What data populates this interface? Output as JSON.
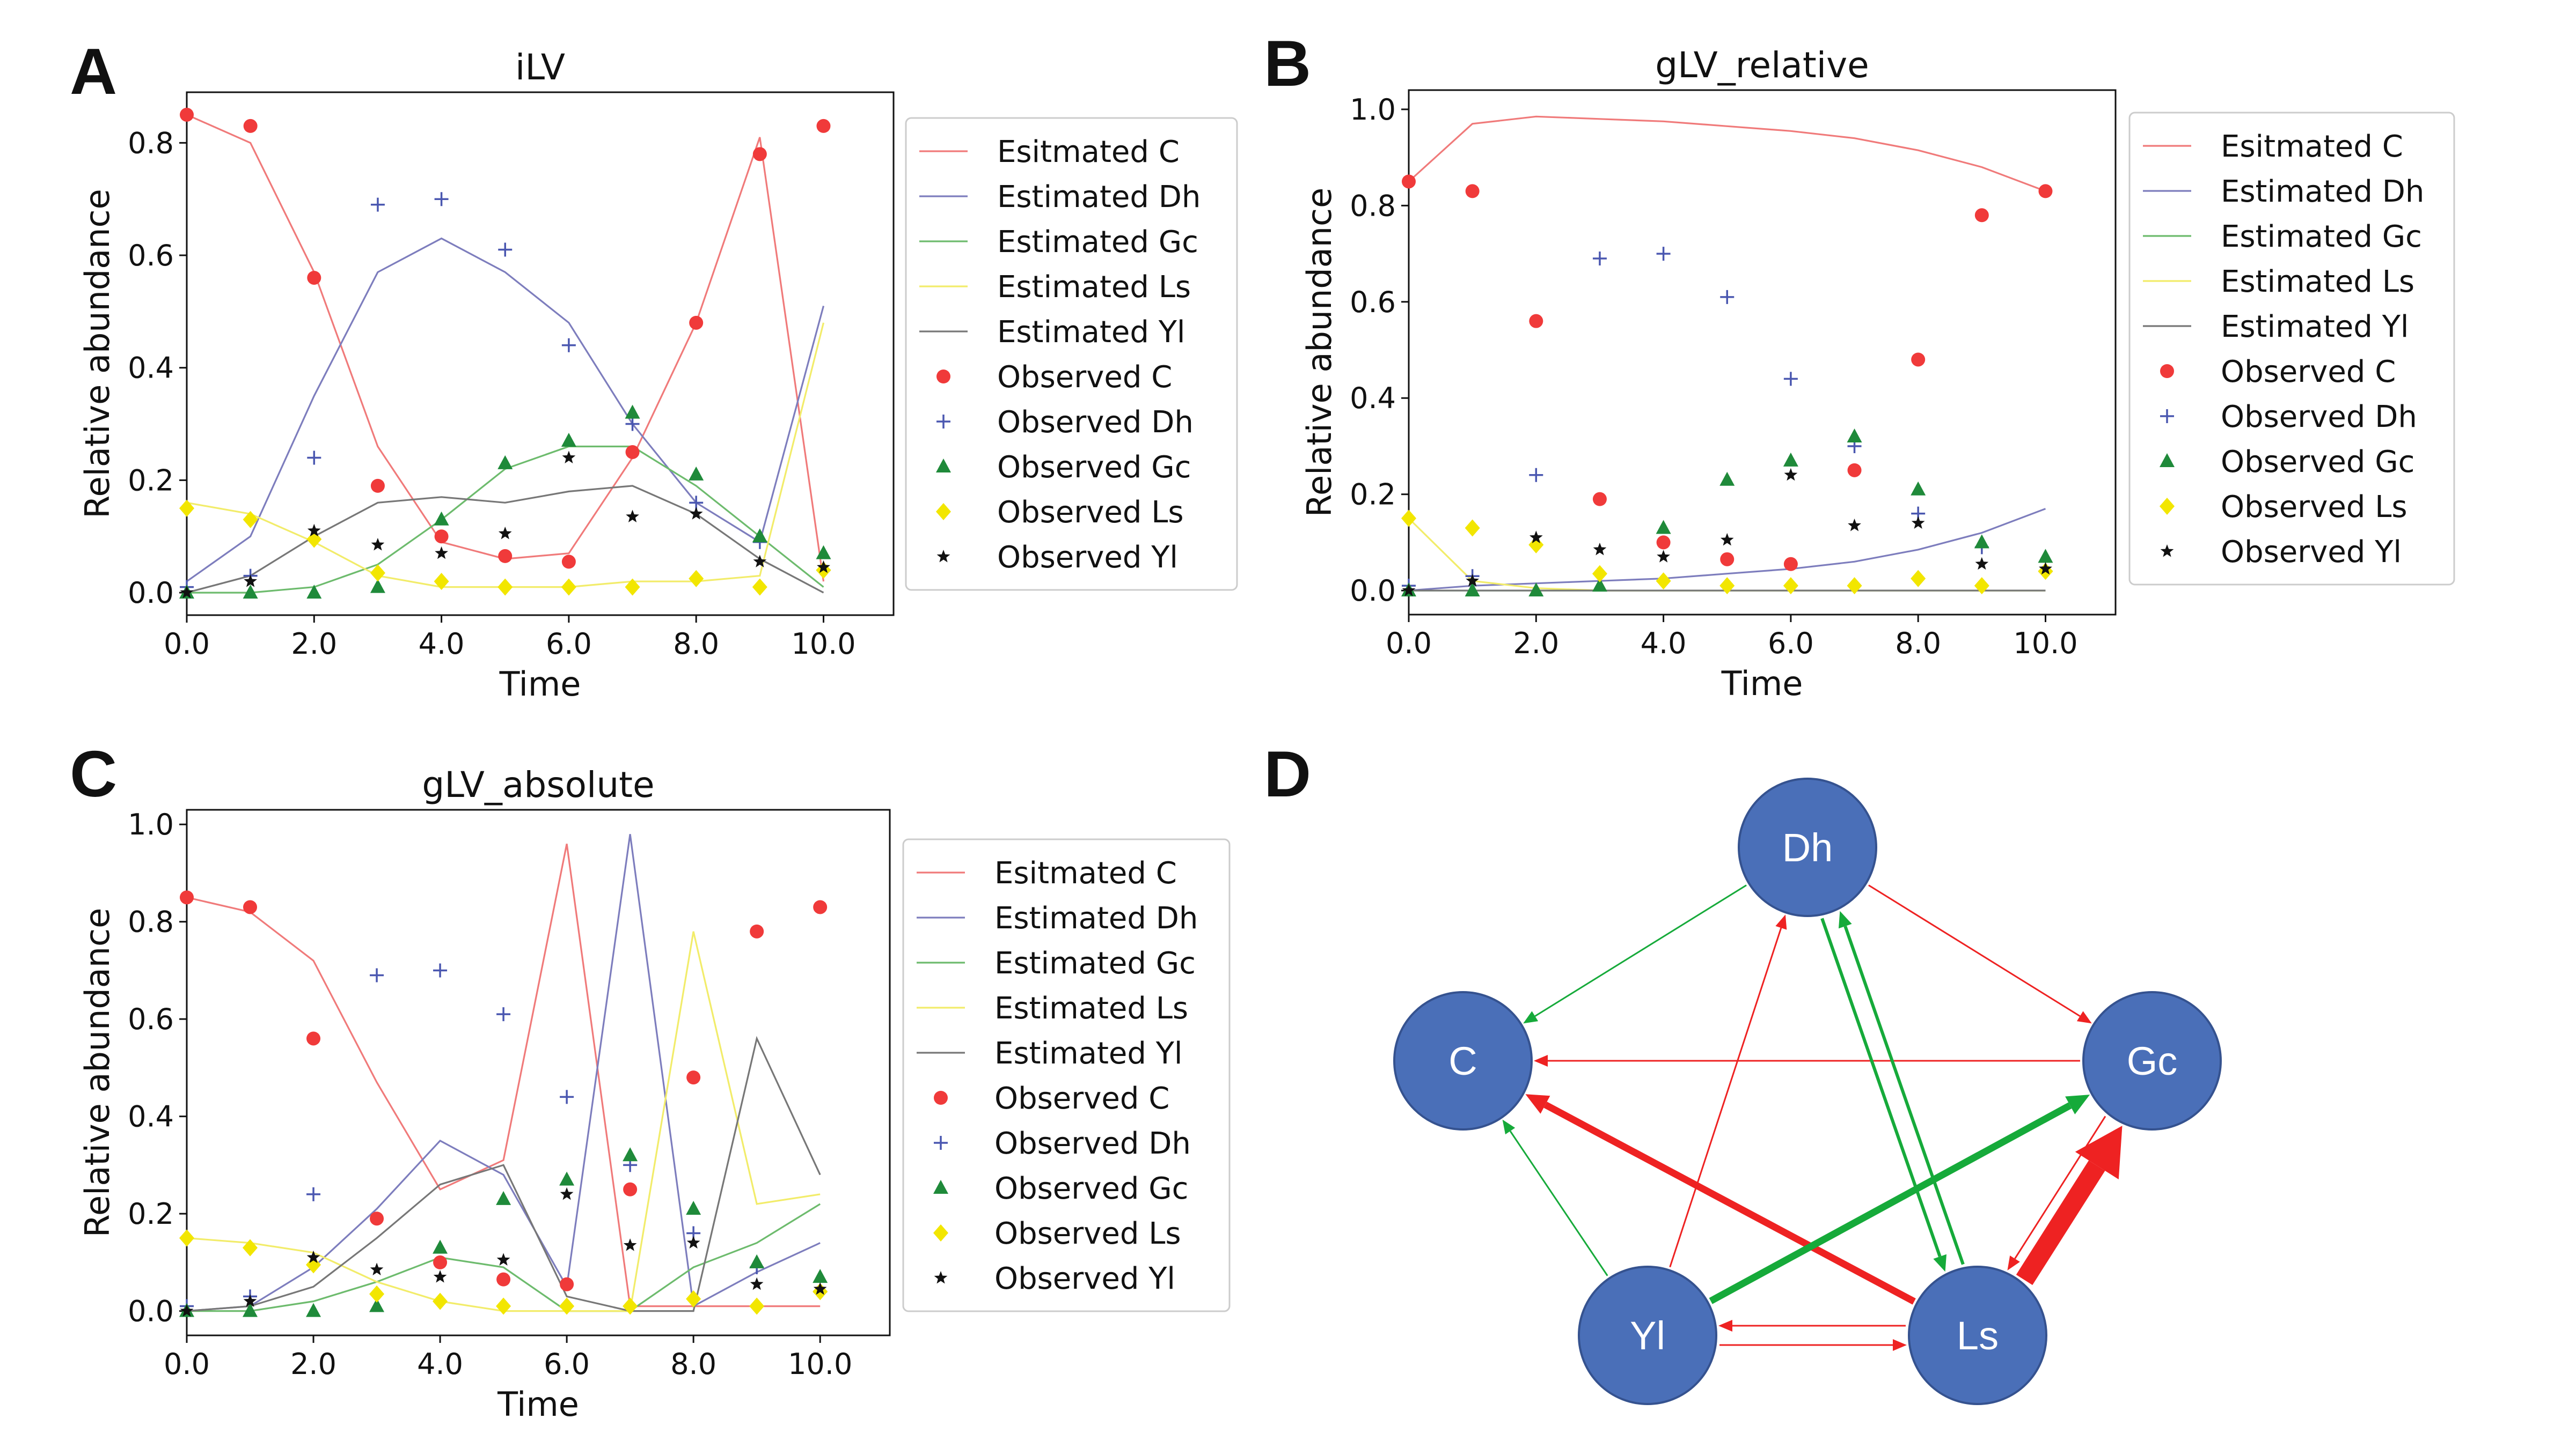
{
  "colors": {
    "C": "#f03a3a",
    "Dh": "#4a57b0",
    "Gc": "#1f8a3a",
    "Ls": "#f2e600",
    "Yl": "#111111",
    "line_C": "#f07a7a",
    "line_Dh": "#7d7dbd",
    "line_Gc": "#6dbb6d",
    "line_Ls": "#f2ec6a",
    "line_Yl": "#777777",
    "node_fill": "#4a6fb8",
    "node_stroke": "#35528f",
    "node_text": "#ffffff",
    "edge_red": "#ee2222",
    "edge_green": "#16aa3a"
  },
  "chart_data": [
    {
      "panel": "A",
      "type": "line",
      "title": "iLV",
      "xlabel": "Time",
      "ylabel": "Relative abundance",
      "xlim": [
        0,
        11.1
      ],
      "ylim": [
        -0.04,
        0.89
      ],
      "xticks": [
        "0.0",
        "2.0",
        "4.0",
        "6.0",
        "8.0",
        "10.0"
      ],
      "yticks": [
        "0.0",
        "0.2",
        "0.4",
        "0.6",
        "0.8"
      ],
      "grid": false,
      "legend_position": "right-outside",
      "x": [
        0,
        1,
        2,
        3,
        4,
        5,
        6,
        7,
        8,
        9,
        10
      ],
      "estimated": [
        {
          "name": "Esitmated C",
          "key": "C",
          "values": [
            0.85,
            0.8,
            0.57,
            0.26,
            0.09,
            0.06,
            0.07,
            0.24,
            0.48,
            0.81,
            0.02
          ]
        },
        {
          "name": "Estimated Dh",
          "key": "Dh",
          "values": [
            0.02,
            0.1,
            0.35,
            0.57,
            0.63,
            0.57,
            0.48,
            0.3,
            0.16,
            0.09,
            0.51
          ]
        },
        {
          "name": "Estimated Gc",
          "key": "Gc",
          "values": [
            0.0,
            0.0,
            0.01,
            0.05,
            0.13,
            0.22,
            0.26,
            0.26,
            0.19,
            0.1,
            0.01
          ]
        },
        {
          "name": "Estimated Ls",
          "key": "Ls",
          "values": [
            0.16,
            0.14,
            0.09,
            0.03,
            0.01,
            0.01,
            0.01,
            0.02,
            0.02,
            0.03,
            0.48
          ]
        },
        {
          "name": "Estimated Yl",
          "key": "Yl",
          "values": [
            0.0,
            0.03,
            0.1,
            0.16,
            0.17,
            0.16,
            0.18,
            0.19,
            0.14,
            0.06,
            0.0
          ]
        }
      ],
      "observed": [
        {
          "name": "Observed C",
          "key": "C",
          "marker": "circle",
          "values": [
            0.85,
            0.83,
            0.56,
            0.19,
            0.1,
            0.065,
            0.055,
            0.25,
            0.48,
            0.78,
            0.83
          ]
        },
        {
          "name": "Observed Dh",
          "key": "Dh",
          "marker": "plus",
          "values": [
            0.01,
            0.03,
            0.24,
            0.69,
            0.7,
            0.61,
            0.44,
            0.3,
            0.16,
            0.09,
            0.04
          ]
        },
        {
          "name": "Observed Gc",
          "key": "Gc",
          "marker": "triangle",
          "values": [
            0.0,
            0.0,
            0.0,
            0.01,
            0.13,
            0.23,
            0.27,
            0.32,
            0.21,
            0.1,
            0.07
          ]
        },
        {
          "name": "Observed Ls",
          "key": "Ls",
          "marker": "diamond",
          "values": [
            0.15,
            0.13,
            0.095,
            0.035,
            0.02,
            0.01,
            0.01,
            0.01,
            0.025,
            0.01,
            0.04
          ]
        },
        {
          "name": "Observed Yl",
          "key": "Yl",
          "marker": "star",
          "values": [
            0.0,
            0.02,
            0.11,
            0.085,
            0.07,
            0.105,
            0.24,
            0.135,
            0.14,
            0.055,
            0.045
          ]
        }
      ]
    },
    {
      "panel": "B",
      "type": "line",
      "title": "gLV_relative",
      "xlabel": "Time",
      "ylabel": "Relative abundance",
      "xlim": [
        0,
        11.1
      ],
      "ylim": [
        -0.05,
        1.04
      ],
      "xticks": [
        "0.0",
        "2.0",
        "4.0",
        "6.0",
        "8.0",
        "10.0"
      ],
      "yticks": [
        "0.0",
        "0.2",
        "0.4",
        "0.6",
        "0.8",
        "1.0"
      ],
      "grid": false,
      "legend_position": "right-outside",
      "x": [
        0,
        1,
        2,
        3,
        4,
        5,
        6,
        7,
        8,
        9,
        10
      ],
      "estimated": [
        {
          "name": "Esitmated C",
          "key": "C",
          "values": [
            0.85,
            0.97,
            0.985,
            0.98,
            0.975,
            0.965,
            0.955,
            0.94,
            0.915,
            0.88,
            0.83
          ]
        },
        {
          "name": "Estimated Dh",
          "key": "Dh",
          "values": [
            0.0,
            0.01,
            0.015,
            0.02,
            0.025,
            0.035,
            0.045,
            0.06,
            0.085,
            0.12,
            0.17
          ]
        },
        {
          "name": "Estimated Gc",
          "key": "Gc",
          "values": [
            0.0,
            0.0,
            0.0,
            0.0,
            0.0,
            0.0,
            0.0,
            0.0,
            0.0,
            0.0,
            0.0
          ]
        },
        {
          "name": "Estimated Ls",
          "key": "Ls",
          "values": [
            0.15,
            0.02,
            0.005,
            0.0,
            0.0,
            0.0,
            0.0,
            0.0,
            0.0,
            0.0,
            0.0
          ]
        },
        {
          "name": "Estimated Yl",
          "key": "Yl",
          "values": [
            0.0,
            0.0,
            0.0,
            0.0,
            0.0,
            0.0,
            0.0,
            0.0,
            0.0,
            0.0,
            0.0
          ]
        }
      ],
      "observed": [
        {
          "name": "Observed C",
          "key": "C",
          "marker": "circle",
          "values": [
            0.85,
            0.83,
            0.56,
            0.19,
            0.1,
            0.065,
            0.055,
            0.25,
            0.48,
            0.78,
            0.83
          ]
        },
        {
          "name": "Observed Dh",
          "key": "Dh",
          "marker": "plus",
          "values": [
            0.01,
            0.03,
            0.24,
            0.69,
            0.7,
            0.61,
            0.44,
            0.3,
            0.16,
            0.09,
            0.04
          ]
        },
        {
          "name": "Observed Gc",
          "key": "Gc",
          "marker": "triangle",
          "values": [
            0.0,
            0.0,
            0.0,
            0.01,
            0.13,
            0.23,
            0.27,
            0.32,
            0.21,
            0.1,
            0.07
          ]
        },
        {
          "name": "Observed Ls",
          "key": "Ls",
          "marker": "diamond",
          "values": [
            0.15,
            0.13,
            0.095,
            0.035,
            0.02,
            0.01,
            0.01,
            0.01,
            0.025,
            0.01,
            0.04
          ]
        },
        {
          "name": "Observed Yl",
          "key": "Yl",
          "marker": "star",
          "values": [
            0.0,
            0.02,
            0.11,
            0.085,
            0.07,
            0.105,
            0.24,
            0.135,
            0.14,
            0.055,
            0.045
          ]
        }
      ]
    },
    {
      "panel": "C",
      "type": "line",
      "title": "gLV_absolute",
      "xlabel": "Time",
      "ylabel": "Relative abundance",
      "xlim": [
        0,
        11.1
      ],
      "ylim": [
        -0.05,
        1.03
      ],
      "xticks": [
        "0.0",
        "2.0",
        "4.0",
        "6.0",
        "8.0",
        "10.0"
      ],
      "yticks": [
        "0.0",
        "0.2",
        "0.4",
        "0.6",
        "0.8",
        "1.0"
      ],
      "grid": false,
      "legend_position": "right-outside",
      "x": [
        0,
        1,
        2,
        3,
        4,
        5,
        6,
        7,
        8,
        9,
        10
      ],
      "estimated": [
        {
          "name": "Esitmated C",
          "key": "C",
          "values": [
            0.85,
            0.82,
            0.72,
            0.47,
            0.25,
            0.31,
            0.96,
            0.01,
            0.01,
            0.01,
            0.01
          ]
        },
        {
          "name": "Estimated Dh",
          "key": "Dh",
          "values": [
            0.0,
            0.01,
            0.09,
            0.21,
            0.35,
            0.28,
            0.05,
            0.98,
            0.01,
            0.08,
            0.14
          ]
        },
        {
          "name": "Estimated Gc",
          "key": "Gc",
          "values": [
            0.0,
            0.0,
            0.02,
            0.06,
            0.11,
            0.09,
            0.0,
            0.0,
            0.09,
            0.14,
            0.22
          ]
        },
        {
          "name": "Estimated Ls",
          "key": "Ls",
          "values": [
            0.15,
            0.14,
            0.12,
            0.06,
            0.02,
            0.0,
            0.0,
            0.0,
            0.78,
            0.22,
            0.24
          ]
        },
        {
          "name": "Estimated Yl",
          "key": "Yl",
          "values": [
            0.0,
            0.01,
            0.05,
            0.15,
            0.26,
            0.3,
            0.03,
            0.0,
            0.0,
            0.56,
            0.28
          ]
        }
      ],
      "observed": [
        {
          "name": "Observed C",
          "key": "C",
          "marker": "circle",
          "values": [
            0.85,
            0.83,
            0.56,
            0.19,
            0.1,
            0.065,
            0.055,
            0.25,
            0.48,
            0.78,
            0.83
          ]
        },
        {
          "name": "Observed Dh",
          "key": "Dh",
          "marker": "plus",
          "values": [
            0.01,
            0.03,
            0.24,
            0.69,
            0.7,
            0.61,
            0.44,
            0.3,
            0.16,
            0.09,
            0.04
          ]
        },
        {
          "name": "Observed Gc",
          "key": "Gc",
          "marker": "triangle",
          "values": [
            0.0,
            0.0,
            0.0,
            0.01,
            0.13,
            0.23,
            0.27,
            0.32,
            0.21,
            0.1,
            0.07
          ]
        },
        {
          "name": "Observed Ls",
          "key": "Ls",
          "marker": "diamond",
          "values": [
            0.15,
            0.13,
            0.095,
            0.035,
            0.02,
            0.01,
            0.01,
            0.01,
            0.025,
            0.01,
            0.04
          ]
        },
        {
          "name": "Observed Yl",
          "key": "Yl",
          "marker": "star",
          "values": [
            0.0,
            0.02,
            0.11,
            0.085,
            0.07,
            0.105,
            0.24,
            0.135,
            0.14,
            0.055,
            0.045
          ]
        }
      ]
    }
  ],
  "network": {
    "panel": "D",
    "nodes": [
      {
        "id": "Dh",
        "label": "Dh"
      },
      {
        "id": "C",
        "label": "C"
      },
      {
        "id": "Gc",
        "label": "Gc"
      },
      {
        "id": "Yl",
        "label": "Yl"
      },
      {
        "id": "Ls",
        "label": "Ls"
      }
    ],
    "edges": [
      {
        "from": "Dh",
        "to": "C",
        "sign": "positive",
        "strength": "weak"
      },
      {
        "from": "Dh",
        "to": "Gc",
        "sign": "negative",
        "strength": "weak"
      },
      {
        "from": "Gc",
        "to": "C",
        "sign": "negative",
        "strength": "weak"
      },
      {
        "from": "Yl",
        "to": "C",
        "sign": "positive",
        "strength": "weak"
      },
      {
        "from": "Yl",
        "to": "Dh",
        "sign": "negative",
        "strength": "weak"
      },
      {
        "from": "Ls",
        "to": "Dh",
        "sign": "positive",
        "strength": "medium"
      },
      {
        "from": "Dh",
        "to": "Ls",
        "sign": "positive",
        "strength": "medium"
      },
      {
        "from": "Ls",
        "to": "C",
        "sign": "negative",
        "strength": "strong"
      },
      {
        "from": "Yl",
        "to": "Gc",
        "sign": "positive",
        "strength": "strong"
      },
      {
        "from": "Gc",
        "to": "Ls",
        "sign": "negative",
        "strength": "weak"
      },
      {
        "from": "Ls",
        "to": "Gc",
        "sign": "negative",
        "strength": "very-strong"
      },
      {
        "from": "Yl",
        "to": "Ls",
        "sign": "negative",
        "strength": "weak"
      },
      {
        "from": "Ls",
        "to": "Yl",
        "sign": "negative",
        "strength": "weak"
      }
    ]
  }
}
